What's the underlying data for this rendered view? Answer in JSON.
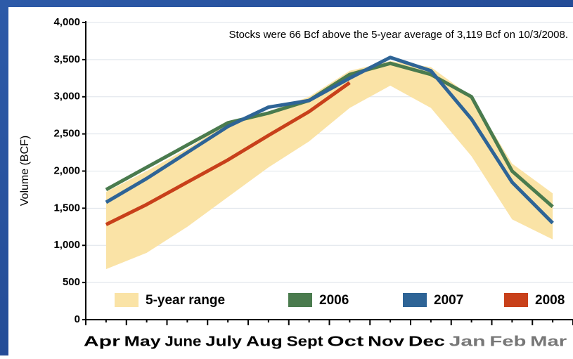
{
  "chart_data": {
    "type": "line",
    "annotation": "Stocks were 66 Bcf above the 5-year average of 3,119 Bcf on 10/3/2008.",
    "y_label": "Volume (BCF)",
    "categories": [
      "Apr",
      "May",
      "June",
      "July",
      "Aug",
      "Sept",
      "Oct",
      "Nov",
      "Dec",
      "Jan",
      "Feb",
      "Mar"
    ],
    "category_colors": [
      "#000000",
      "#000000",
      "#000000",
      "#000000",
      "#000000",
      "#000000",
      "#000000",
      "#000000",
      "#000000",
      "#777777",
      "#777777",
      "#777777"
    ],
    "range": {
      "name": "5-year range",
      "color": "#fae3a6",
      "low": [
        680,
        900,
        1250,
        1650,
        2050,
        2400,
        2850,
        3150,
        2850,
        2200,
        1350,
        1080
      ],
      "high": [
        1720,
        2000,
        2300,
        2650,
        2800,
        3000,
        3350,
        3480,
        3400,
        3000,
        2100,
        1700
      ]
    },
    "series": [
      {
        "name": "2006",
        "color": "#4a7b4e",
        "values": [
          1750,
          2050,
          2350,
          2650,
          2780,
          2950,
          3300,
          3450,
          3300,
          3000,
          2000,
          1520
        ]
      },
      {
        "name": "2007",
        "color": "#2e6496",
        "values": [
          1580,
          1900,
          2250,
          2600,
          2860,
          2950,
          3250,
          3530,
          3350,
          2700,
          1850,
          1300
        ]
      },
      {
        "name": "2008",
        "color": "#c8401a",
        "values": [
          1280,
          1550,
          1850,
          2150,
          2480,
          2800,
          3190,
          null,
          null,
          null,
          null,
          null
        ]
      }
    ],
    "ylim": [
      0,
      4000
    ],
    "yticks": [
      0,
      500,
      {
        "value": 1000,
        "label": "1,000"
      },
      {
        "value": 1500,
        "label": "1,500"
      },
      {
        "value": 2000,
        "label": "2,000"
      },
      {
        "value": 2500,
        "label": "2,500"
      },
      {
        "value": 3000,
        "label": "3,000"
      },
      {
        "value": 3500,
        "label": "3,500"
      },
      {
        "value": 4000,
        "label": "4,000"
      }
    ],
    "grid": true
  }
}
